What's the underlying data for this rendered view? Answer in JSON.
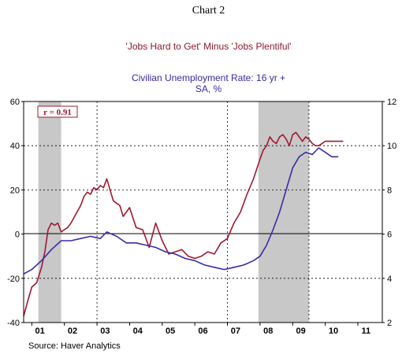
{
  "chart_data": {
    "type": "line",
    "title": "Chart 2",
    "series_titles": [
      "'Jobs Hard to Get' Minus 'Jobs Plentiful'"
    ],
    "right_axis_title": [
      "Civilian Unemployment Rate: 16 yr +",
      "SA, %"
    ],
    "annotation": "r = 0.91",
    "source": "Source: Haver Analytics",
    "x_tick_labels": [
      "01",
      "02",
      "03",
      "04",
      "05",
      "06",
      "07",
      "08",
      "09",
      "10",
      "11"
    ],
    "x_range": [
      2000.75,
      2011.75
    ],
    "y_left_ticks": [
      "60",
      "40",
      "20",
      "0",
      "-20",
      "-40"
    ],
    "y_left_range": [
      -40,
      60
    ],
    "y_right_ticks": [
      "12",
      "10",
      "8",
      "6",
      "4",
      "2"
    ],
    "y_right_range": [
      2,
      12
    ],
    "recessions": [
      [
        2001.2,
        2001.9
      ],
      [
        2007.95,
        2009.5
      ]
    ],
    "series": [
      {
        "axis": "left",
        "color": "#a01830",
        "x": [
          2000.75,
          2000.9,
          2001.0,
          2001.15,
          2001.3,
          2001.4,
          2001.5,
          2001.6,
          2001.7,
          2001.8,
          2001.9,
          2002.0,
          2002.1,
          2002.2,
          2002.35,
          2002.5,
          2002.6,
          2002.7,
          2002.8,
          2002.9,
          2003.0,
          2003.1,
          2003.2,
          2003.3,
          2003.4,
          2003.5,
          2003.6,
          2003.7,
          2003.8,
          2003.9,
          2004.0,
          2004.2,
          2004.4,
          2004.6,
          2004.8,
          2005.0,
          2005.2,
          2005.4,
          2005.6,
          2005.8,
          2006.0,
          2006.2,
          2006.4,
          2006.6,
          2006.8,
          2007.0,
          2007.2,
          2007.4,
          2007.6,
          2007.8,
          2008.0,
          2008.1,
          2008.2,
          2008.3,
          2008.4,
          2008.5,
          2008.6,
          2008.7,
          2008.8,
          2008.9,
          2009.0,
          2009.1,
          2009.2,
          2009.3,
          2009.4,
          2009.5,
          2009.6,
          2009.7,
          2009.8,
          2009.9,
          2010.0,
          2010.2,
          2010.4,
          2010.55
        ],
        "values": [
          -37,
          -29,
          -24,
          -22,
          -15,
          -8,
          2,
          5,
          4,
          5,
          1,
          2,
          3,
          5,
          9,
          13,
          17,
          19,
          18,
          21,
          20,
          22,
          21,
          25,
          20,
          15,
          14,
          13,
          8,
          10,
          12,
          3,
          2,
          -6,
          5,
          -3,
          -9,
          -8,
          -7,
          -10,
          -11,
          -10,
          -8,
          -9,
          -4,
          -2,
          5,
          10,
          18,
          25,
          34,
          38,
          40,
          44,
          42,
          41,
          44,
          45,
          43,
          40,
          45,
          46,
          44,
          42,
          44,
          43,
          41,
          40,
          40,
          41,
          42,
          42,
          42,
          42
        ]
      },
      {
        "axis": "right",
        "color": "#3b2aa6",
        "x": [
          2000.75,
          2001.0,
          2001.3,
          2001.6,
          2001.9,
          2002.2,
          2002.5,
          2002.8,
          2003.1,
          2003.3,
          2003.6,
          2003.9,
          2004.2,
          2004.5,
          2004.8,
          2005.1,
          2005.4,
          2005.7,
          2006.0,
          2006.3,
          2006.6,
          2006.9,
          2007.2,
          2007.5,
          2007.8,
          2008.0,
          2008.2,
          2008.4,
          2008.6,
          2008.8,
          2009.0,
          2009.2,
          2009.4,
          2009.6,
          2009.8,
          2010.0,
          2010.2,
          2010.4
        ],
        "values": [
          4.2,
          4.4,
          4.8,
          5.3,
          5.7,
          5.7,
          5.8,
          5.9,
          5.8,
          6.1,
          5.9,
          5.6,
          5.6,
          5.5,
          5.4,
          5.2,
          5.1,
          4.9,
          4.8,
          4.6,
          4.5,
          4.4,
          4.5,
          4.6,
          4.8,
          5.0,
          5.5,
          6.2,
          7.0,
          8.0,
          9.0,
          9.5,
          9.7,
          9.6,
          9.9,
          9.7,
          9.5,
          9.5
        ]
      }
    ],
    "grid": true
  }
}
